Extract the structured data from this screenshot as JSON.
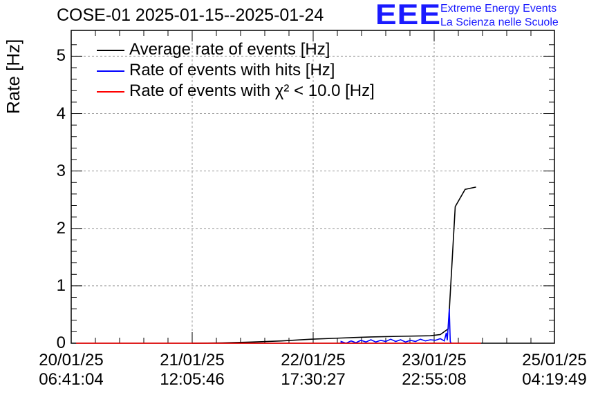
{
  "chart_data": {
    "type": "line",
    "title": "COSE-01 2025-01-15--2025-01-24",
    "ylabel": "Rate [Hz]",
    "xlabel": "",
    "ylim": [
      0,
      5.45
    ],
    "xlim_days": [
      20.08,
      24.95
    ],
    "yticks": [
      "0",
      "1",
      "2",
      "3",
      "4",
      "5"
    ],
    "xticks": [
      {
        "line1": "20/01/25",
        "line2": "06:41:04"
      },
      {
        "line1": "21/01/25",
        "line2": "12:05:46"
      },
      {
        "line1": "22/01/25",
        "line2": "17:30:27"
      },
      {
        "line1": "23/01/25",
        "line2": "22:55:08"
      },
      {
        "line1": "25/01/25",
        "line2": "04:19:49"
      }
    ],
    "grid": true,
    "legend_position": "top-left",
    "series": [
      {
        "name": "Average rate of events [Hz]",
        "color": "#000000",
        "points": [
          [
            21.3,
            0.0
          ],
          [
            21.6,
            0.005
          ],
          [
            21.9,
            0.02
          ],
          [
            22.2,
            0.04
          ],
          [
            22.5,
            0.07
          ],
          [
            22.8,
            0.09
          ],
          [
            23.1,
            0.11
          ],
          [
            23.4,
            0.12
          ],
          [
            23.7,
            0.13
          ],
          [
            23.8,
            0.15
          ],
          [
            23.88,
            0.25
          ],
          [
            23.95,
            2.38
          ],
          [
            24.05,
            2.68
          ],
          [
            24.16,
            2.72
          ]
        ]
      },
      {
        "name": "Rate of events with hits [Hz]",
        "color": "#0000ff",
        "points": [
          [
            22.8,
            0.0
          ],
          [
            22.8,
            0.03
          ],
          [
            22.85,
            0.0
          ],
          [
            22.9,
            0.04
          ],
          [
            22.95,
            0.01
          ],
          [
            23.0,
            0.05
          ],
          [
            23.05,
            0.02
          ],
          [
            23.1,
            0.06
          ],
          [
            23.15,
            0.02
          ],
          [
            23.2,
            0.05
          ],
          [
            23.25,
            0.03
          ],
          [
            23.3,
            0.07
          ],
          [
            23.35,
            0.03
          ],
          [
            23.4,
            0.06
          ],
          [
            23.45,
            0.02
          ],
          [
            23.5,
            0.05
          ],
          [
            23.55,
            0.03
          ],
          [
            23.6,
            0.07
          ],
          [
            23.65,
            0.04
          ],
          [
            23.7,
            0.06
          ],
          [
            23.75,
            0.05
          ],
          [
            23.8,
            0.08
          ],
          [
            23.84,
            0.04
          ],
          [
            23.86,
            0.18
          ],
          [
            23.87,
            0.05
          ],
          [
            23.89,
            0.6
          ],
          [
            23.9,
            0.03
          ],
          [
            23.91,
            0.0
          ]
        ]
      },
      {
        "name": "Rate of events with χ² < 10.0 [Hz]",
        "color": "#ff0000",
        "points": [
          [
            20.13,
            0.0
          ],
          [
            24.21,
            0.0
          ]
        ]
      }
    ]
  }
}
